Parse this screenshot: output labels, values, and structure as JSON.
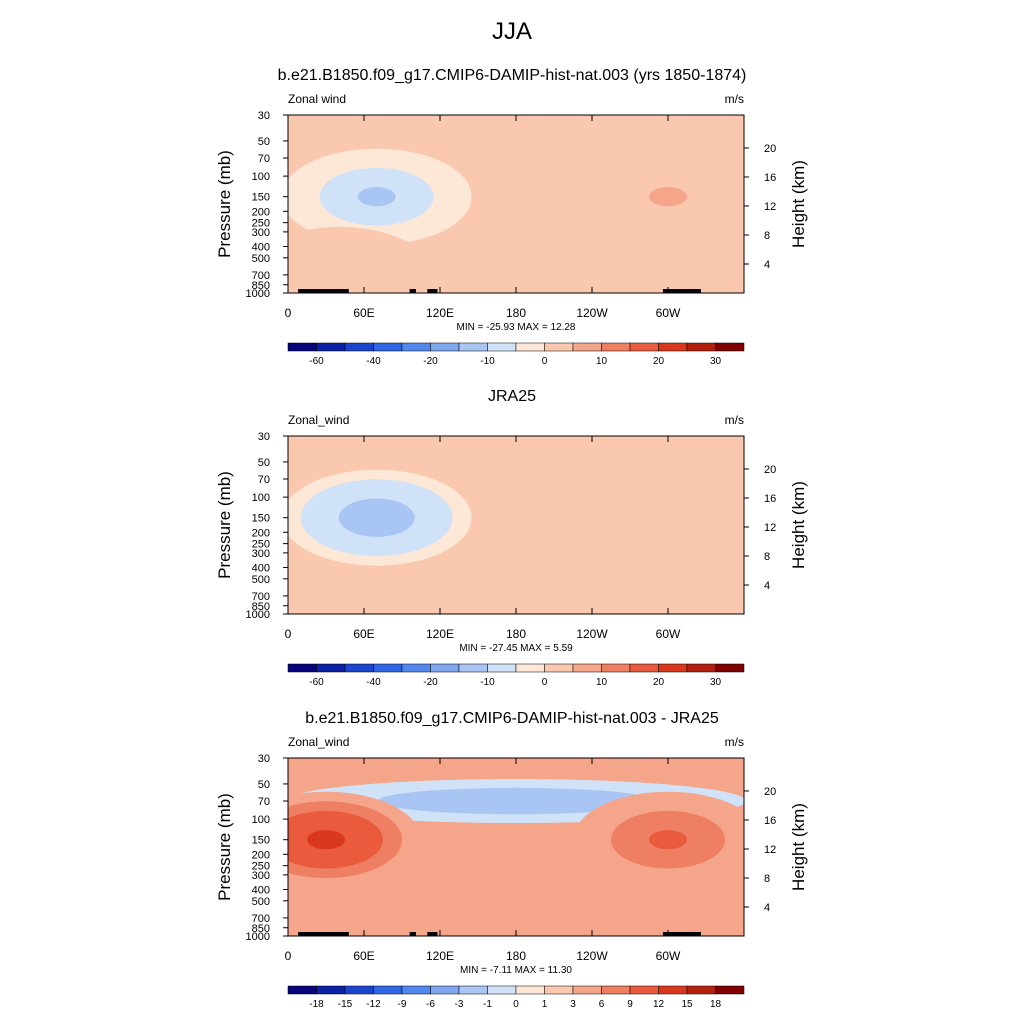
{
  "page": {
    "season": "JJA"
  },
  "chart_data": [
    {
      "type": "heatmap",
      "panel": "model",
      "title": "b.e21.B1850.f09_g17.CMIP6-DAMIP-hist-nat.003 (yrs 1850-1874)",
      "variable_label": "Zonal wind",
      "units": "m/s",
      "xlabel": "",
      "ylabel": "Pressure (mb)",
      "y2label": "Height (km)",
      "x_ticks": [
        "0",
        "60E",
        "120E",
        "180",
        "120W",
        "60W"
      ],
      "y_ticks": [
        "30",
        "50",
        "70",
        "100",
        "150",
        "200",
        "250",
        "300",
        "400",
        "500",
        "700",
        "850",
        "1000"
      ],
      "y2_ticks": [
        "20",
        "16",
        "12",
        "8",
        "4"
      ],
      "stats_text": "MIN = -25.93  MAX =  12.28",
      "min": -25.93,
      "max": 12.28,
      "background_level": 2.5,
      "features": [
        {
          "lon": 70,
          "p": 150,
          "value": -25
        },
        {
          "lon": 300,
          "p": 150,
          "value": 12
        },
        {
          "lon": 40,
          "p": 700,
          "value": 6
        }
      ],
      "topography": true,
      "colorbar": {
        "labels": [
          "-60",
          "-40",
          "-20",
          "-10",
          "0",
          "10",
          "20",
          "30"
        ],
        "colors": [
          "#08047b",
          "#0c21a6",
          "#1b44cf",
          "#2f66e6",
          "#5288ee",
          "#7fa7f0",
          "#a8c5f3",
          "#d0e2f8",
          "#fde7d7",
          "#f9c8ae",
          "#f4a58a",
          "#ef7f63",
          "#e95b3c",
          "#d9381d",
          "#b4200f",
          "#7f0000"
        ]
      }
    },
    {
      "type": "heatmap",
      "panel": "observations",
      "title": "JRA25",
      "variable_label": "Zonal_wind",
      "units": "m/s",
      "xlabel": "",
      "ylabel": "Pressure (mb)",
      "y2label": "Height (km)",
      "x_ticks": [
        "0",
        "60E",
        "120E",
        "180",
        "120W",
        "60W"
      ],
      "y_ticks": [
        "30",
        "50",
        "70",
        "100",
        "150",
        "200",
        "250",
        "300",
        "400",
        "500",
        "700",
        "850",
        "1000"
      ],
      "y2_ticks": [
        "20",
        "16",
        "12",
        "8",
        "4"
      ],
      "stats_text": "MIN = -27.45  MAX =   5.59",
      "min": -27.45,
      "max": 5.59,
      "background_level": 2.5,
      "features": [
        {
          "lon": 70,
          "p": 150,
          "value": -27
        },
        {
          "lon": 220,
          "p": 120,
          "value": 5
        }
      ],
      "topography": false,
      "colorbar": {
        "labels": [
          "-60",
          "-40",
          "-20",
          "-10",
          "0",
          "10",
          "20",
          "30"
        ],
        "colors": [
          "#08047b",
          "#0c21a6",
          "#1b44cf",
          "#2f66e6",
          "#5288ee",
          "#7fa7f0",
          "#a8c5f3",
          "#d0e2f8",
          "#fde7d7",
          "#f9c8ae",
          "#f4a58a",
          "#ef7f63",
          "#e95b3c",
          "#d9381d",
          "#b4200f",
          "#7f0000"
        ]
      }
    },
    {
      "type": "heatmap",
      "panel": "difference",
      "title": "b.e21.B1850.f09_g17.CMIP6-DAMIP-hist-nat.003 - JRA25",
      "variable_label": "Zonal_wind",
      "units": "m/s",
      "xlabel": "",
      "ylabel": "Pressure (mb)",
      "y2label": "Height (km)",
      "x_ticks": [
        "0",
        "60E",
        "120E",
        "180",
        "120W",
        "60W"
      ],
      "y_ticks": [
        "30",
        "50",
        "70",
        "100",
        "150",
        "200",
        "250",
        "300",
        "400",
        "500",
        "700",
        "850",
        "1000"
      ],
      "y2_ticks": [
        "20",
        "16",
        "12",
        "8",
        "4"
      ],
      "stats_text": "MIN =  -7.11  MAX =  11.30",
      "min": -7.11,
      "max": 11.3,
      "background_level": 2,
      "features": [
        {
          "lon": 180,
          "p": 70,
          "value": -6
        },
        {
          "lon": 30,
          "p": 150,
          "value": 11
        },
        {
          "lon": 300,
          "p": 150,
          "value": 7
        }
      ],
      "topography": true,
      "colorbar": {
        "labels": [
          "-18",
          "-15",
          "-12",
          "-9",
          "-6",
          "-3",
          "-1",
          "0",
          "1",
          "3",
          "6",
          "9",
          "12",
          "15",
          "18"
        ],
        "colors": [
          "#08047b",
          "#0c21a6",
          "#1b44cf",
          "#2f66e6",
          "#5288ee",
          "#7fa7f0",
          "#a8c5f3",
          "#d0e2f8",
          "#fde7d7",
          "#f9c8ae",
          "#f4a58a",
          "#ef7f63",
          "#e95b3c",
          "#d9381d",
          "#b4200f",
          "#7f0000"
        ]
      }
    }
  ]
}
